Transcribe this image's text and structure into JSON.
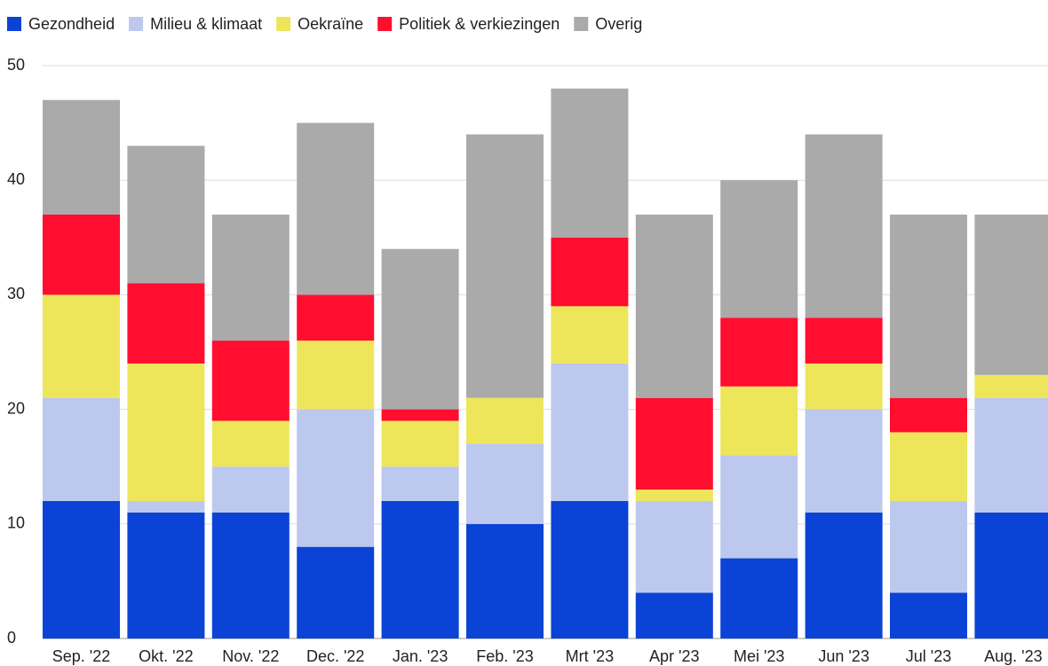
{
  "chart_data": {
    "type": "stacked_bar",
    "categories": [
      "Sep. '22",
      "Okt. '22",
      "Nov. '22",
      "Dec. '22",
      "Jan. '23",
      "Feb. '23",
      "Mrt '23",
      "Apr '23",
      "Mei '23",
      "Jun '23",
      "Jul '23",
      "Aug. '23"
    ],
    "series": [
      {
        "name": "Gezondheid",
        "color": "#0a43d6",
        "values": [
          12,
          11,
          11,
          8,
          12,
          10,
          12,
          4,
          7,
          11,
          4,
          11
        ]
      },
      {
        "name": "Milieu & klimaat",
        "color": "#bdc8ee",
        "values": [
          9,
          1,
          4,
          12,
          3,
          7,
          12,
          8,
          9,
          9,
          8,
          10
        ]
      },
      {
        "name": "Oekraïne",
        "color": "#ede65a",
        "values": [
          9,
          12,
          4,
          6,
          4,
          4,
          5,
          1,
          6,
          4,
          6,
          2
        ]
      },
      {
        "name": "Politiek & verkiezingen",
        "color": "#ff0e2f",
        "values": [
          7,
          7,
          7,
          4,
          1,
          0,
          6,
          8,
          6,
          4,
          3,
          0
        ]
      },
      {
        "name": "Overig",
        "color": "#aaaaaa",
        "values": [
          10,
          12,
          11,
          15,
          14,
          23,
          13,
          16,
          12,
          16,
          16,
          14
        ]
      }
    ],
    "ylim": [
      0,
      50
    ],
    "yticks": [
      0,
      10,
      20,
      30,
      40,
      50
    ],
    "grid": true,
    "legend": "top"
  }
}
